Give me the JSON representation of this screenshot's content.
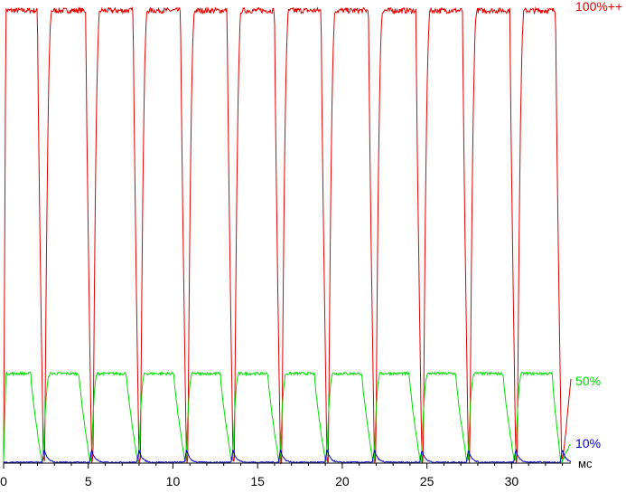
{
  "chart_data": {
    "type": "line",
    "title": "",
    "xlabel": "",
    "ylabel": "",
    "x_unit": "мс",
    "xlim": [
      0,
      33.5
    ],
    "ylim": [
      0,
      100
    ],
    "x_ticks": [
      "0",
      "5",
      "10",
      "15",
      "20",
      "25",
      "30"
    ],
    "x_tick_values": [
      0,
      5,
      10,
      15,
      20,
      25,
      30
    ],
    "grid": false,
    "legend": "right-edge labels",
    "period_ms": 2.8,
    "series": [
      {
        "name": "100%++",
        "color": "#e00000",
        "high": 98.5,
        "low": 0.5,
        "fall_start_ms": [
          2.0,
          4.85,
          7.65,
          10.45,
          13.2,
          16.0,
          18.75,
          21.55,
          24.35,
          27.1,
          29.9,
          32.6
        ],
        "fall_end_ms": [
          2.35,
          5.2,
          8.0,
          10.8,
          13.55,
          16.35,
          19.1,
          21.9,
          24.7,
          27.45,
          30.25,
          32.95
        ],
        "recover_ms": [
          2.85,
          5.7,
          8.5,
          11.3,
          14.05,
          16.85,
          19.6,
          22.4,
          25.2,
          27.95,
          30.75
        ]
      },
      {
        "name": "50%",
        "color": "#00dd00",
        "high": 19.5,
        "low": 0.5,
        "fall_start_ms": [
          1.6,
          4.45,
          7.25,
          10.05,
          12.8,
          15.6,
          18.35,
          21.15,
          23.95,
          26.7,
          29.5,
          32.4
        ],
        "fall_end_ms": [
          2.25,
          5.1,
          7.9,
          10.7,
          13.45,
          16.25,
          19.0,
          21.8,
          24.6,
          27.35,
          30.15,
          32.9
        ],
        "recover_ms": [
          2.75,
          5.55,
          8.35,
          11.15,
          13.9,
          16.7,
          19.45,
          22.25,
          25.05,
          27.8,
          30.6
        ]
      },
      {
        "name": "10%",
        "color": "#0000cc",
        "high": 3.0,
        "low": 0.2,
        "peak_ms": [
          2.4,
          5.2,
          8.0,
          10.8,
          13.55,
          16.35,
          19.1,
          21.9,
          24.7,
          27.45,
          30.25,
          33.0
        ]
      }
    ]
  }
}
